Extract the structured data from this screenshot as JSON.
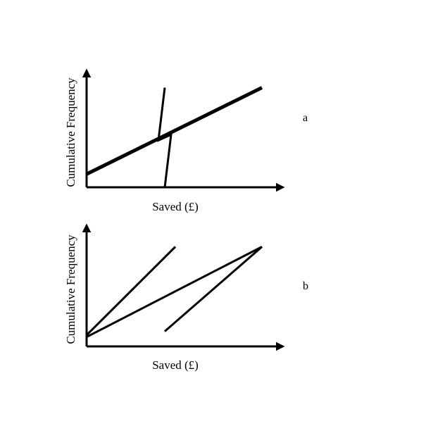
{
  "chart_data": [
    {
      "type": "line",
      "panel_label": "a",
      "xlabel": "Saved (£)",
      "ylabel": "Cumulative Frequency",
      "ticks": "none",
      "grid": false,
      "legend": "none",
      "note": "",
      "series": [
        {
          "stroke": "thick",
          "points": [
            [
              0,
              0.07
            ],
            [
              0.83,
              0.53
            ]
          ]
        },
        {
          "stroke": "thin",
          "points": [
            [
              0.37,
              0
            ],
            [
              0.4,
              0.28
            ],
            [
              0.34,
              0.25
            ],
            [
              0.37,
              0.53
            ]
          ]
        }
      ]
    },
    {
      "type": "line",
      "panel_label": "b",
      "xlabel": "Saved (£)",
      "ylabel": "Cumulative Frequency",
      "ticks": "none",
      "grid": false,
      "legend": "none",
      "note": "",
      "series": [
        {
          "stroke": "thin",
          "points": [
            [
              0,
              0.06
            ],
            [
              0.42,
              0.53
            ]
          ]
        },
        {
          "stroke": "thin",
          "points": [
            [
              0,
              0.05
            ],
            [
              0.83,
              0.53
            ]
          ]
        },
        {
          "stroke": "thin",
          "points": [
            [
              0.37,
              0.08
            ],
            [
              0.83,
              0.53
            ]
          ]
        }
      ]
    }
  ]
}
